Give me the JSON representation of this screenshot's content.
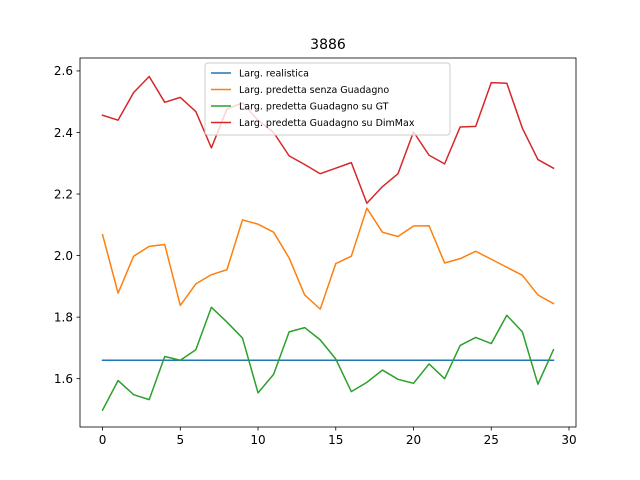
{
  "chart_data": {
    "type": "line",
    "title": "3886",
    "xlabel": "",
    "ylabel": "",
    "xlim": [
      -1.45,
      30.45
    ],
    "ylim": [
      1.443,
      2.642
    ],
    "x_ticks": [
      0,
      5,
      10,
      15,
      20,
      25,
      30
    ],
    "y_ticks": [
      1.6,
      1.8,
      2.0,
      2.2,
      2.4,
      2.6
    ],
    "x_tick_labels": [
      "0",
      "5",
      "10",
      "15",
      "20",
      "25",
      "30"
    ],
    "y_tick_labels": [
      "1.6",
      "1.8",
      "2.0",
      "2.2",
      "2.4",
      "2.6"
    ],
    "grid": false,
    "legend_position": "top-center",
    "x": [
      0,
      1,
      2,
      3,
      4,
      5,
      6,
      7,
      8,
      9,
      10,
      11,
      12,
      13,
      14,
      15,
      16,
      17,
      18,
      19,
      20,
      21,
      22,
      23,
      24,
      25,
      26,
      27,
      28,
      29
    ],
    "series": [
      {
        "name": "Larg. realistica",
        "color": "#1f77b4",
        "values": [
          1.66,
          1.66,
          1.66,
          1.66,
          1.66,
          1.66,
          1.66,
          1.66,
          1.66,
          1.66,
          1.66,
          1.66,
          1.66,
          1.66,
          1.66,
          1.66,
          1.66,
          1.66,
          1.66,
          1.66,
          1.66,
          1.66,
          1.66,
          1.66,
          1.66,
          1.66,
          1.66,
          1.66,
          1.66,
          1.66
        ]
      },
      {
        "name": "Larg. predetta senza Guadagno",
        "color": "#ff7f0e",
        "values": [
          2.068,
          1.878,
          1.998,
          2.03,
          2.036,
          1.838,
          1.908,
          1.938,
          1.954,
          2.116,
          2.102,
          2.076,
          1.992,
          1.872,
          1.826,
          1.974,
          1.998,
          2.154,
          2.076,
          2.062,
          2.096,
          2.097,
          1.976,
          1.99,
          2.014,
          1.988,
          1.962,
          1.936,
          1.872,
          1.844
        ]
      },
      {
        "name": "Larg. predetta Guadagno su GT",
        "color": "#2ca02c",
        "values": [
          1.498,
          1.594,
          1.548,
          1.532,
          1.672,
          1.66,
          1.694,
          1.832,
          1.784,
          1.732,
          1.554,
          1.614,
          1.752,
          1.766,
          1.726,
          1.664,
          1.558,
          1.588,
          1.628,
          1.598,
          1.585,
          1.648,
          1.6,
          1.708,
          1.734,
          1.714,
          1.806,
          1.752,
          1.582,
          1.694
        ]
      },
      {
        "name": "Larg. predetta Guadagno su DimMax",
        "color": "#d62728",
        "values": [
          2.456,
          2.44,
          2.53,
          2.582,
          2.498,
          2.514,
          2.468,
          2.35,
          2.476,
          2.496,
          2.44,
          2.4,
          2.324,
          2.296,
          2.266,
          2.284,
          2.302,
          2.17,
          2.224,
          2.266,
          2.402,
          2.326,
          2.298,
          2.418,
          2.42,
          2.562,
          2.56,
          2.414,
          2.312,
          2.284
        ]
      }
    ]
  }
}
